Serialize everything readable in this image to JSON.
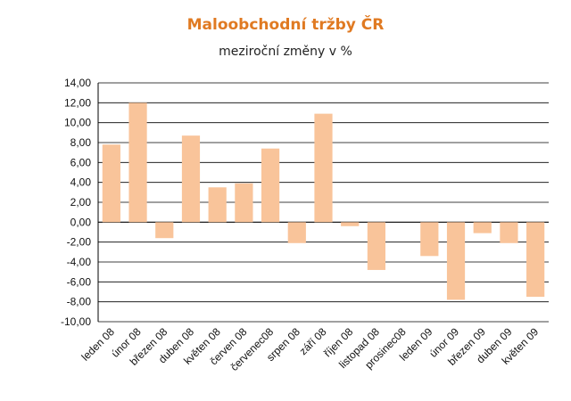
{
  "chart_data": {
    "type": "bar",
    "title": "Maloobchodní tržby ČR",
    "subtitle": "meziroční změny v %",
    "xlabel": "",
    "ylabel": "",
    "ylim": [
      -10,
      14
    ],
    "yticks": [
      "14,00",
      "12,00",
      "10,00",
      "8,00",
      "6,00",
      "4,00",
      "2,00",
      "0,00",
      "-2,00",
      "-4,00",
      "-6,00",
      "-8,00",
      "-10,00"
    ],
    "grid": true,
    "legend": "none",
    "bar_color": "#f9c49a",
    "categories": [
      "leden 08",
      "únor 08",
      "březen 08",
      "duben 08",
      "květen 08",
      "červen 08",
      "červenec08",
      "srpen 08",
      "září 08",
      "říjen 08",
      "listopad 08",
      "prosinec08",
      "leden 09",
      "únor 09",
      "březen 09",
      "duben 09",
      "květen 09"
    ],
    "values": [
      7.8,
      12.0,
      -1.6,
      8.7,
      3.5,
      3.9,
      7.4,
      -2.1,
      10.9,
      -0.4,
      -4.8,
      0.0,
      -3.4,
      -7.8,
      -1.1,
      -2.1,
      -7.5
    ]
  }
}
